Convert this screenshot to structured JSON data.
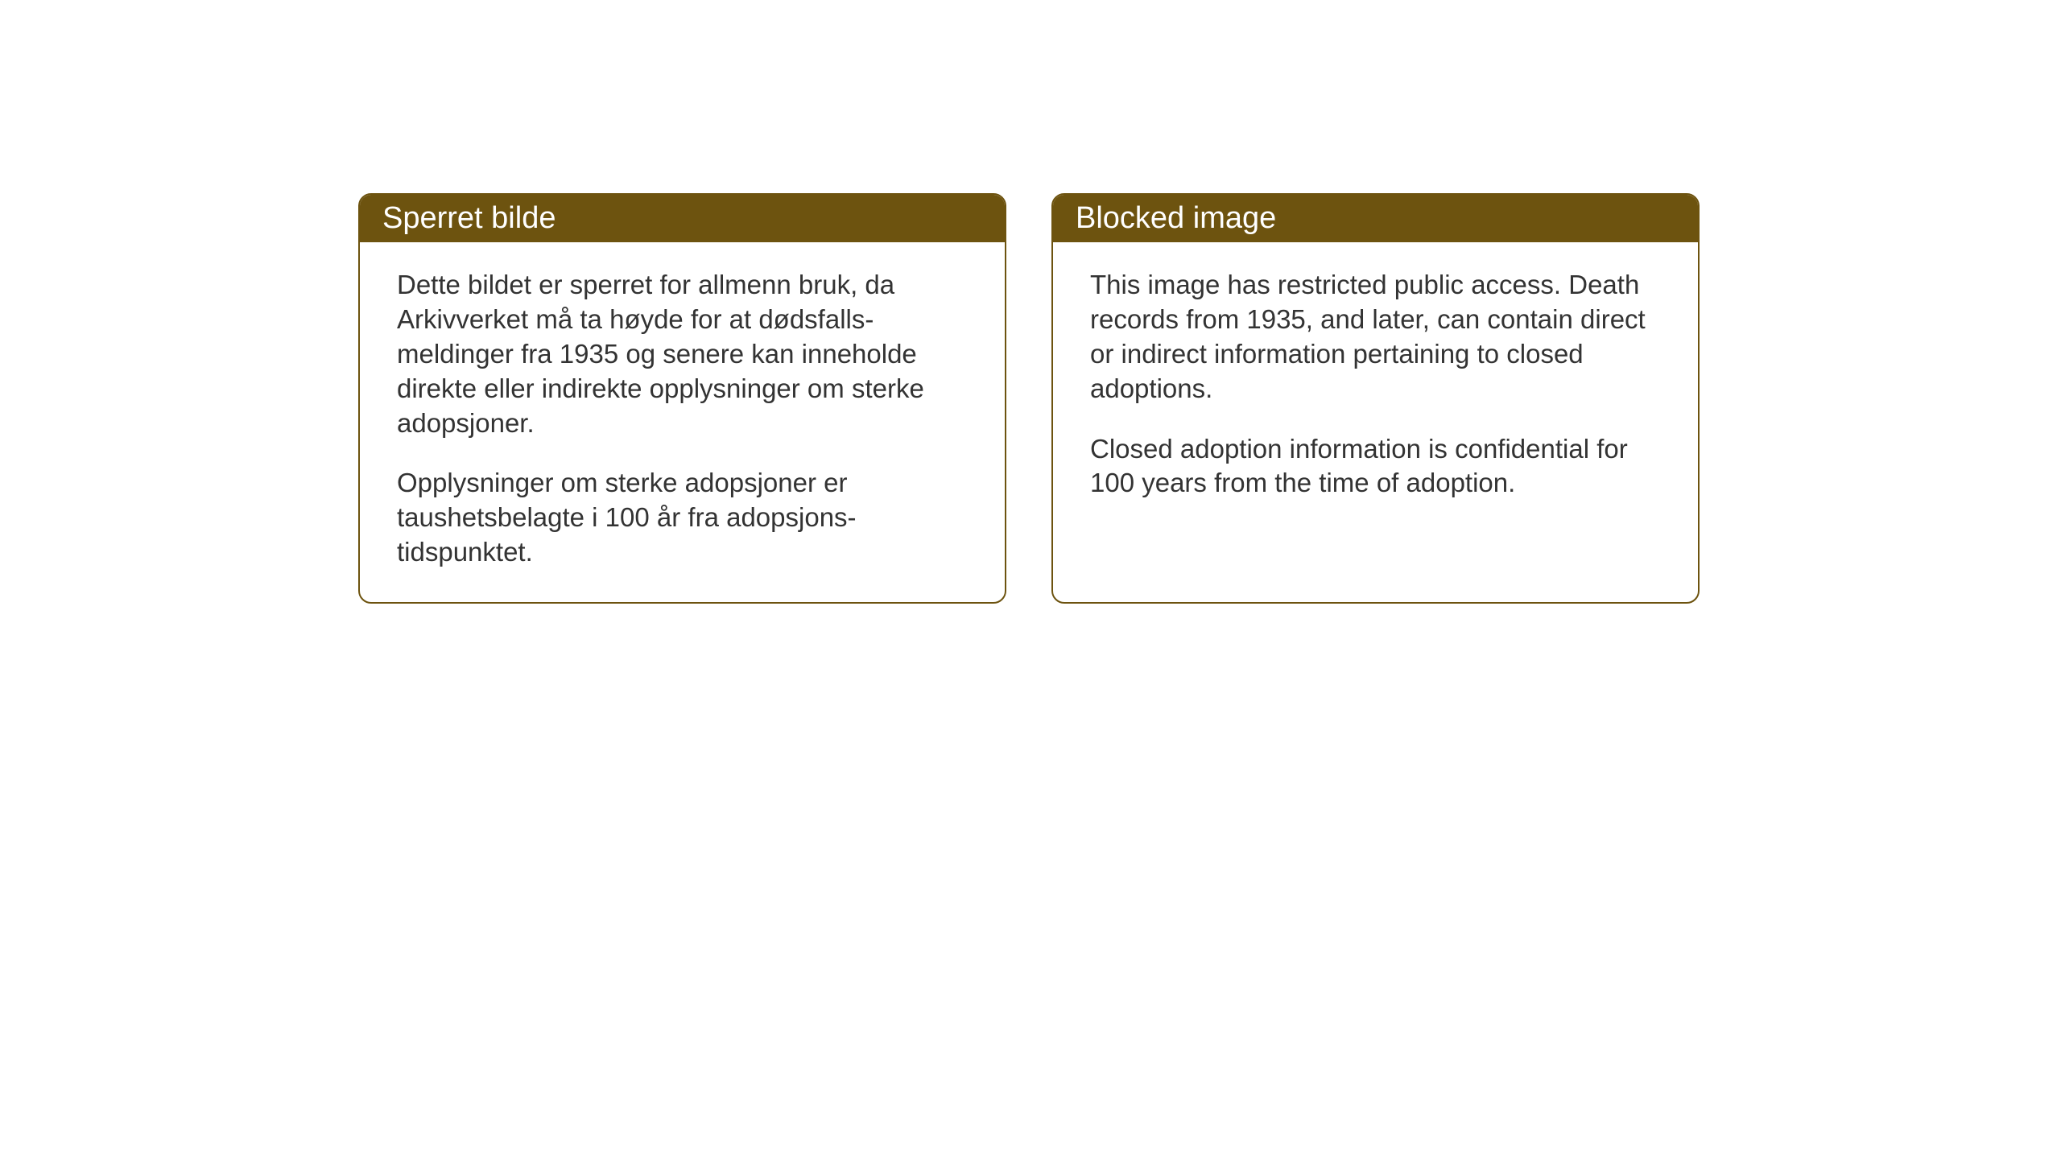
{
  "cards": [
    {
      "title": "Sperret bilde",
      "paragraph1": "Dette bildet er sperret for allmenn bruk, da Arkivverket må ta høyde for at dødsfalls-meldinger fra 1935 og senere kan inneholde direkte eller indirekte opplysninger om sterke adopsjoner.",
      "paragraph2": "Opplysninger om sterke adopsjoner er taushetsbelagte i 100 år fra adopsjons-tidspunktet."
    },
    {
      "title": "Blocked image",
      "paragraph1": "This image has restricted public access. Death records from 1935, and later, can contain direct or indirect information pertaining to closed adoptions.",
      "paragraph2": "Closed adoption information is confidential for 100 years from the time of adoption."
    }
  ],
  "styling": {
    "header_background": "#6d530f",
    "header_text_color": "#ffffff",
    "border_color": "#6d530f",
    "body_background": "#ffffff",
    "body_text_color": "#333333",
    "border_radius": 16,
    "border_width": 2,
    "header_fontsize": 38,
    "body_fontsize": 33,
    "page_background": "#ffffff"
  }
}
